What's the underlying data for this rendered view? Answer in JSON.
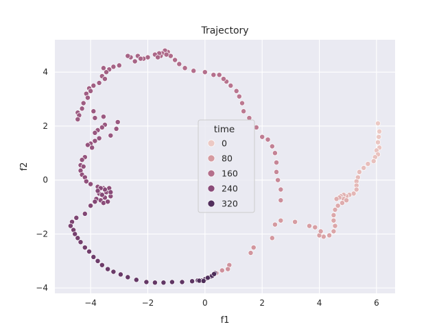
{
  "chart_data": {
    "type": "scatter",
    "title": "Trajectory",
    "xlabel": "f1",
    "ylabel": "f2",
    "xlim": [
      -5.25,
      6.65
    ],
    "ylim": [
      -4.2,
      5.2
    ],
    "xticks": [
      -4,
      -2,
      0,
      2,
      4,
      6
    ],
    "xtick_labels": [
      "−4",
      "−2",
      "0",
      "2",
      "4",
      "6"
    ],
    "yticks": [
      -4,
      -2,
      0,
      2,
      4
    ],
    "ytick_labels": [
      "−4",
      "−2",
      "0",
      "2",
      "4"
    ],
    "grid": true,
    "background_color": "#eaeaf2",
    "legend": {
      "title": "time",
      "placement": "center",
      "entries": [
        {
          "label": "0",
          "value": 0,
          "color": "#ecc9c4"
        },
        {
          "label": "80",
          "value": 80,
          "color": "#d59aa0"
        },
        {
          "label": "160",
          "value": 160,
          "color": "#b46f8c"
        },
        {
          "label": "240",
          "value": 240,
          "color": "#8a4b79"
        },
        {
          "label": "320",
          "value": 320,
          "color": "#522f5d"
        }
      ]
    },
    "hue": {
      "name": "time",
      "min": 0,
      "max": 350
    },
    "points": [
      {
        "x": 6.05,
        "y": 2.1,
        "t": 0
      },
      {
        "x": 6.1,
        "y": 1.8,
        "t": 2
      },
      {
        "x": 6.08,
        "y": 1.6,
        "t": 4
      },
      {
        "x": 6.05,
        "y": 1.4,
        "t": 6
      },
      {
        "x": 6.1,
        "y": 1.2,
        "t": 8
      },
      {
        "x": 6.0,
        "y": 1.1,
        "t": 10
      },
      {
        "x": 6.05,
        "y": 0.95,
        "t": 12
      },
      {
        "x": 5.95,
        "y": 0.85,
        "t": 14
      },
      {
        "x": 5.9,
        "y": 0.7,
        "t": 16
      },
      {
        "x": 5.7,
        "y": 0.6,
        "t": 18
      },
      {
        "x": 5.55,
        "y": 0.45,
        "t": 20
      },
      {
        "x": 5.4,
        "y": 0.3,
        "t": 22
      },
      {
        "x": 5.35,
        "y": 0.1,
        "t": 24
      },
      {
        "x": 5.3,
        "y": -0.05,
        "t": 26
      },
      {
        "x": 5.3,
        "y": -0.2,
        "t": 28
      },
      {
        "x": 5.3,
        "y": -0.35,
        "t": 30
      },
      {
        "x": 5.2,
        "y": -0.5,
        "t": 32
      },
      {
        "x": 5.05,
        "y": -0.55,
        "t": 34
      },
      {
        "x": 4.95,
        "y": -0.6,
        "t": 36
      },
      {
        "x": 4.85,
        "y": -0.55,
        "t": 38
      },
      {
        "x": 4.75,
        "y": -0.6,
        "t": 40
      },
      {
        "x": 4.85,
        "y": -0.7,
        "t": 42
      },
      {
        "x": 4.7,
        "y": -0.65,
        "t": 44
      },
      {
        "x": 4.6,
        "y": -0.7,
        "t": 46
      },
      {
        "x": 4.95,
        "y": -0.75,
        "t": 48
      },
      {
        "x": 4.8,
        "y": -0.85,
        "t": 50
      },
      {
        "x": 4.65,
        "y": -0.95,
        "t": 52
      },
      {
        "x": 4.55,
        "y": -1.1,
        "t": 54
      },
      {
        "x": 4.5,
        "y": -1.3,
        "t": 56
      },
      {
        "x": 4.5,
        "y": -1.5,
        "t": 58
      },
      {
        "x": 4.55,
        "y": -1.7,
        "t": 60
      },
      {
        "x": 4.5,
        "y": -1.9,
        "t": 62
      },
      {
        "x": 4.35,
        "y": -2.05,
        "t": 64
      },
      {
        "x": 4.15,
        "y": -2.1,
        "t": 66
      },
      {
        "x": 4.0,
        "y": -2.05,
        "t": 68
      },
      {
        "x": 4.05,
        "y": -1.9,
        "t": 70
      },
      {
        "x": 3.85,
        "y": -1.75,
        "t": 72
      },
      {
        "x": 3.65,
        "y": -1.7,
        "t": 74
      },
      {
        "x": 3.15,
        "y": -1.55,
        "t": 76
      },
      {
        "x": 2.65,
        "y": -1.5,
        "t": 80
      },
      {
        "x": 2.45,
        "y": -1.65,
        "t": 82
      },
      {
        "x": 2.35,
        "y": -2.15,
        "t": 84
      },
      {
        "x": 1.7,
        "y": -2.5,
        "t": 88
      },
      {
        "x": 1.6,
        "y": -2.7,
        "t": 90
      },
      {
        "x": 0.85,
        "y": -3.15,
        "t": 94
      },
      {
        "x": 0.8,
        "y": -3.3,
        "t": 96
      },
      {
        "x": 0.6,
        "y": -3.35,
        "t": 98
      },
      {
        "x": 0.4,
        "y": -3.45,
        "t": 100
      },
      {
        "x": 0.2,
        "y": -3.55,
        "t": 101
      },
      {
        "x": 2.65,
        "y": -0.75,
        "t": 104
      },
      {
        "x": 2.65,
        "y": -0.35,
        "t": 108
      },
      {
        "x": 2.55,
        "y": 0.0,
        "t": 112
      },
      {
        "x": 2.5,
        "y": 0.3,
        "t": 116
      },
      {
        "x": 2.5,
        "y": 0.65,
        "t": 120
      },
      {
        "x": 2.45,
        "y": 1.0,
        "t": 124
      },
      {
        "x": 2.35,
        "y": 1.25,
        "t": 128
      },
      {
        "x": 2.2,
        "y": 1.5,
        "t": 132
      },
      {
        "x": 2.0,
        "y": 1.6,
        "t": 134
      },
      {
        "x": 1.8,
        "y": 1.95,
        "t": 136
      },
      {
        "x": 1.55,
        "y": 2.3,
        "t": 140
      },
      {
        "x": 1.35,
        "y": 2.55,
        "t": 142
      },
      {
        "x": 1.3,
        "y": 2.85,
        "t": 144
      },
      {
        "x": 1.2,
        "y": 3.1,
        "t": 146
      },
      {
        "x": 1.1,
        "y": 3.3,
        "t": 148
      },
      {
        "x": 0.9,
        "y": 3.5,
        "t": 150
      },
      {
        "x": 0.75,
        "y": 3.65,
        "t": 152
      },
      {
        "x": 0.65,
        "y": 3.75,
        "t": 154
      },
      {
        "x": 0.5,
        "y": 3.9,
        "t": 156
      },
      {
        "x": 0.3,
        "y": 3.9,
        "t": 158
      },
      {
        "x": 0.0,
        "y": 4.0,
        "t": 160
      },
      {
        "x": -0.4,
        "y": 4.05,
        "t": 162
      },
      {
        "x": -0.7,
        "y": 4.15,
        "t": 164
      },
      {
        "x": -0.9,
        "y": 4.3,
        "t": 166
      },
      {
        "x": -1.05,
        "y": 4.45,
        "t": 168
      },
      {
        "x": -1.2,
        "y": 4.6,
        "t": 170
      },
      {
        "x": -1.3,
        "y": 4.75,
        "t": 172
      },
      {
        "x": -1.4,
        "y": 4.8,
        "t": 173
      },
      {
        "x": -1.5,
        "y": 4.7,
        "t": 174
      },
      {
        "x": -1.35,
        "y": 4.65,
        "t": 175
      },
      {
        "x": -1.55,
        "y": 4.6,
        "t": 176
      },
      {
        "x": -1.6,
        "y": 4.7,
        "t": 177
      },
      {
        "x": -1.75,
        "y": 4.65,
        "t": 178
      },
      {
        "x": -1.65,
        "y": 4.55,
        "t": 179
      },
      {
        "x": -2.0,
        "y": 4.55,
        "t": 180
      },
      {
        "x": -2.15,
        "y": 4.5,
        "t": 181
      },
      {
        "x": -2.35,
        "y": 4.6,
        "t": 182
      },
      {
        "x": -2.25,
        "y": 4.5,
        "t": 183
      },
      {
        "x": -2.45,
        "y": 4.4,
        "t": 184
      },
      {
        "x": -2.6,
        "y": 4.55,
        "t": 185
      },
      {
        "x": -2.7,
        "y": 4.6,
        "t": 186
      },
      {
        "x": -3.0,
        "y": 4.25,
        "t": 188
      },
      {
        "x": -3.2,
        "y": 4.2,
        "t": 189
      },
      {
        "x": -3.35,
        "y": 4.1,
        "t": 190
      },
      {
        "x": -3.55,
        "y": 4.15,
        "t": 191
      },
      {
        "x": -3.45,
        "y": 4.0,
        "t": 192
      },
      {
        "x": -3.6,
        "y": 3.85,
        "t": 193
      },
      {
        "x": -3.5,
        "y": 3.75,
        "t": 194
      },
      {
        "x": -3.7,
        "y": 3.6,
        "t": 195
      },
      {
        "x": -3.9,
        "y": 3.5,
        "t": 196
      },
      {
        "x": -4.05,
        "y": 3.4,
        "t": 197
      },
      {
        "x": -4.0,
        "y": 3.3,
        "t": 198
      },
      {
        "x": -4.15,
        "y": 3.2,
        "t": 199
      },
      {
        "x": -4.1,
        "y": 3.05,
        "t": 200
      },
      {
        "x": -4.25,
        "y": 2.85,
        "t": 201
      },
      {
        "x": -4.3,
        "y": 2.65,
        "t": 202
      },
      {
        "x": -4.45,
        "y": 2.5,
        "t": 203
      },
      {
        "x": -4.4,
        "y": 2.4,
        "t": 204
      },
      {
        "x": -4.45,
        "y": 2.25,
        "t": 205
      },
      {
        "x": -3.9,
        "y": 2.55,
        "t": 206
      },
      {
        "x": -3.85,
        "y": 2.3,
        "t": 207
      },
      {
        "x": -3.55,
        "y": 2.35,
        "t": 208
      },
      {
        "x": -3.05,
        "y": 2.15,
        "t": 209
      },
      {
        "x": -3.1,
        "y": 1.9,
        "t": 210
      },
      {
        "x": -3.5,
        "y": 2.05,
        "t": 211
      },
      {
        "x": -3.6,
        "y": 1.95,
        "t": 212
      },
      {
        "x": -3.75,
        "y": 1.85,
        "t": 213
      },
      {
        "x": -3.85,
        "y": 1.75,
        "t": 214
      },
      {
        "x": -3.3,
        "y": 1.65,
        "t": 215
      },
      {
        "x": -3.7,
        "y": 1.55,
        "t": 216
      },
      {
        "x": -3.85,
        "y": 1.45,
        "t": 217
      },
      {
        "x": -4.0,
        "y": 1.35,
        "t": 218
      },
      {
        "x": -3.95,
        "y": 1.2,
        "t": 219
      },
      {
        "x": -4.1,
        "y": 1.3,
        "t": 220
      },
      {
        "x": -4.2,
        "y": 0.85,
        "t": 222
      },
      {
        "x": -4.3,
        "y": 0.75,
        "t": 223
      },
      {
        "x": -4.35,
        "y": 0.55,
        "t": 224
      },
      {
        "x": -4.25,
        "y": 0.5,
        "t": 225
      },
      {
        "x": -4.35,
        "y": 0.35,
        "t": 226
      },
      {
        "x": -4.3,
        "y": 0.2,
        "t": 227
      },
      {
        "x": -4.2,
        "y": 0.1,
        "t": 228
      },
      {
        "x": -4.15,
        "y": -0.05,
        "t": 229
      },
      {
        "x": -4.0,
        "y": -0.15,
        "t": 230
      },
      {
        "x": -3.75,
        "y": -0.25,
        "t": 232
      },
      {
        "x": -3.55,
        "y": -0.3,
        "t": 233
      },
      {
        "x": -3.35,
        "y": -0.3,
        "t": 234
      },
      {
        "x": -3.45,
        "y": -0.45,
        "t": 235
      },
      {
        "x": -3.3,
        "y": -0.6,
        "t": 236
      },
      {
        "x": -3.5,
        "y": -0.65,
        "t": 237
      },
      {
        "x": -3.7,
        "y": -0.5,
        "t": 238
      },
      {
        "x": -3.65,
        "y": -0.75,
        "t": 239
      },
      {
        "x": -3.8,
        "y": -0.7,
        "t": 240
      },
      {
        "x": -3.55,
        "y": -0.85,
        "t": 241
      },
      {
        "x": -3.4,
        "y": -0.8,
        "t": 242
      },
      {
        "x": -3.3,
        "y": -0.45,
        "t": 243
      },
      {
        "x": -3.5,
        "y": -0.35,
        "t": 244
      },
      {
        "x": -3.65,
        "y": -0.3,
        "t": 245
      },
      {
        "x": -3.75,
        "y": -0.4,
        "t": 246
      },
      {
        "x": -3.6,
        "y": -0.55,
        "t": 247
      },
      {
        "x": -3.85,
        "y": -0.8,
        "t": 248
      },
      {
        "x": -4.0,
        "y": -0.95,
        "t": 250
      },
      {
        "x": -4.2,
        "y": -1.25,
        "t": 254
      },
      {
        "x": -4.5,
        "y": -1.4,
        "t": 258
      },
      {
        "x": -4.65,
        "y": -1.55,
        "t": 262
      },
      {
        "x": -4.7,
        "y": -1.7,
        "t": 264
      },
      {
        "x": -4.6,
        "y": -1.85,
        "t": 266
      },
      {
        "x": -4.55,
        "y": -2.0,
        "t": 268
      },
      {
        "x": -4.45,
        "y": -2.15,
        "t": 270
      },
      {
        "x": -4.35,
        "y": -2.3,
        "t": 272
      },
      {
        "x": -4.2,
        "y": -2.5,
        "t": 274
      },
      {
        "x": -4.05,
        "y": -2.65,
        "t": 276
      },
      {
        "x": -3.9,
        "y": -2.85,
        "t": 278
      },
      {
        "x": -3.75,
        "y": -3.0,
        "t": 280
      },
      {
        "x": -3.6,
        "y": -3.15,
        "t": 282
      },
      {
        "x": -3.4,
        "y": -3.3,
        "t": 284
      },
      {
        "x": -3.2,
        "y": -3.4,
        "t": 286
      },
      {
        "x": -2.95,
        "y": -3.5,
        "t": 288
      },
      {
        "x": -2.7,
        "y": -3.6,
        "t": 290
      },
      {
        "x": -2.4,
        "y": -3.7,
        "t": 292
      },
      {
        "x": -2.05,
        "y": -3.78,
        "t": 294
      },
      {
        "x": -1.75,
        "y": -3.8,
        "t": 296
      },
      {
        "x": -1.45,
        "y": -3.8,
        "t": 298
      },
      {
        "x": -1.15,
        "y": -3.78,
        "t": 300
      },
      {
        "x": -0.8,
        "y": -3.78,
        "t": 302
      },
      {
        "x": -0.45,
        "y": -3.75,
        "t": 304
      },
      {
        "x": -0.25,
        "y": -3.72,
        "t": 306
      },
      {
        "x": -0.15,
        "y": -3.74,
        "t": 308
      },
      {
        "x": -0.05,
        "y": -3.7,
        "t": 310
      },
      {
        "x": 0.05,
        "y": -3.65,
        "t": 312
      },
      {
        "x": 0.15,
        "y": -3.6,
        "t": 314
      },
      {
        "x": 0.3,
        "y": -3.5,
        "t": 316
      },
      {
        "x": 0.35,
        "y": -3.45,
        "t": 318
      },
      {
        "x": -0.1,
        "y": -3.72,
        "t": 320
      },
      {
        "x": 0.0,
        "y": -3.68,
        "t": 322
      },
      {
        "x": 0.2,
        "y": -3.58,
        "t": 324
      },
      {
        "x": 0.1,
        "y": -3.62,
        "t": 326
      },
      {
        "x": -0.2,
        "y": -3.73,
        "t": 328
      },
      {
        "x": -0.05,
        "y": -3.74,
        "t": 330
      },
      {
        "x": 0.25,
        "y": -3.55,
        "t": 332
      },
      {
        "x": 0.32,
        "y": -3.48,
        "t": 334
      }
    ]
  }
}
